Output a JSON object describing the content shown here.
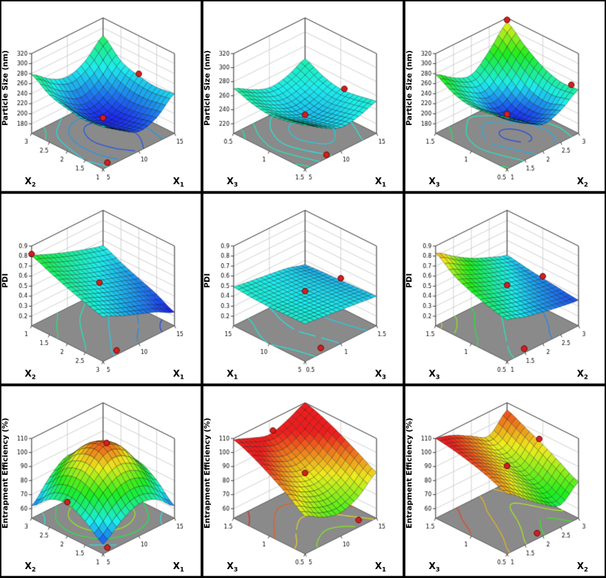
{
  "figure": {
    "layout": "3x3",
    "kind": "response-surface-plots"
  },
  "colors": {
    "floor": "#8a8a8a",
    "panel_bg": "#ffffff",
    "design_point": "#d31f1f",
    "border": "#000000"
  },
  "chart_data": [
    {
      "type": "surface",
      "zlabel": "Particle Size (nm)",
      "z_ticks": [
        180,
        200,
        220,
        240,
        260,
        280,
        300,
        320
      ],
      "left_axis": {
        "label": "X2",
        "label_main": "X",
        "label_sub": "2",
        "ticks": [
          1,
          1.5,
          2,
          2.5,
          3
        ]
      },
      "right_axis": {
        "label": "X1",
        "label_main": "X",
        "label_sub": "1",
        "ticks": [
          5,
          10,
          15
        ]
      },
      "surface": [
        [
          245,
          220,
          200,
          210,
          240
        ],
        [
          240,
          210,
          192,
          202,
          235
        ],
        [
          245,
          208,
          188,
          200,
          240
        ],
        [
          255,
          222,
          202,
          218,
          252
        ],
        [
          278,
          252,
          238,
          252,
          285
        ]
      ],
      "color_domain": [
        175,
        420
      ],
      "contour_levels": [
        200,
        220,
        240,
        260
      ],
      "design_points": [
        {
          "u": 0.5,
          "v": 0.5,
          "on": "surface"
        },
        {
          "u": 1.0,
          "v": 0.5,
          "on": "surface"
        },
        {
          "u": 0.12,
          "v": 0.06,
          "on": "floor"
        }
      ]
    },
    {
      "type": "surface",
      "zlabel": "Particle Size (nm)",
      "z_ticks": [
        220,
        240,
        260,
        280,
        300,
        320
      ],
      "left_axis": {
        "label": "X3",
        "label_main": "X",
        "label_sub": "3",
        "ticks": [
          1.5,
          1,
          0.5
        ]
      },
      "right_axis": {
        "label": "X1",
        "label_main": "X",
        "label_sub": "1",
        "ticks": [
          5,
          10,
          15
        ]
      },
      "surface": [
        [
          268,
          252,
          240,
          243,
          252
        ],
        [
          262,
          246,
          234,
          237,
          247
        ],
        [
          258,
          242,
          230,
          233,
          244
        ],
        [
          262,
          247,
          236,
          240,
          250
        ],
        [
          270,
          256,
          246,
          250,
          262
        ]
      ],
      "color_domain": [
        170,
        430
      ],
      "contour_levels": [
        235,
        245,
        255,
        265
      ],
      "design_points": [
        {
          "u": 0.5,
          "v": 0.5,
          "on": "surface"
        },
        {
          "u": 1.0,
          "v": 0.45,
          "on": "surface"
        },
        {
          "u": 0.35,
          "v": 0.05,
          "on": "floor"
        }
      ]
    },
    {
      "type": "surface",
      "zlabel": "Particle Size (nm)",
      "z_ticks": [
        180,
        200,
        220,
        240,
        260,
        280,
        300,
        320
      ],
      "left_axis": {
        "label": "X3",
        "label_main": "X",
        "label_sub": "3",
        "ticks": [
          0.5,
          1,
          1.5
        ]
      },
      "right_axis": {
        "label": "X2",
        "label_main": "X",
        "label_sub": "2",
        "ticks": [
          1,
          1.5,
          2,
          2.5,
          3
        ]
      },
      "surface": [
        [
          262,
          238,
          214,
          224,
          248
        ],
        [
          254,
          228,
          200,
          210,
          246
        ],
        [
          250,
          220,
          195,
          216,
          258
        ],
        [
          258,
          234,
          216,
          242,
          282
        ],
        [
          278,
          254,
          242,
          272,
          312
        ]
      ],
      "color_domain": [
        185,
        350
      ],
      "contour_levels": [
        200,
        220,
        240,
        260,
        280
      ],
      "design_points": [
        {
          "u": 0.5,
          "v": 0.5,
          "on": "surface"
        },
        {
          "u": 1.0,
          "v": 1.0,
          "on": "surface"
        },
        {
          "u": 1.0,
          "v": 0.1,
          "on": "surface"
        }
      ]
    },
    {
      "type": "surface",
      "zlabel": "PDI",
      "z_ticks": [
        0.2,
        0.3,
        0.4,
        0.5,
        0.6,
        0.7,
        0.8,
        0.9
      ],
      "left_axis": {
        "label": "X2",
        "label_main": "X",
        "label_sub": "2",
        "ticks": [
          3,
          2.5,
          2,
          1.5,
          1
        ]
      },
      "right_axis": {
        "label": "X1",
        "label_main": "X",
        "label_sub": "1",
        "ticks": [
          5,
          10,
          15
        ]
      },
      "surface": [
        [
          0.55,
          0.47,
          0.4,
          0.33,
          0.24
        ],
        [
          0.6,
          0.53,
          0.46,
          0.4,
          0.33
        ],
        [
          0.66,
          0.59,
          0.52,
          0.46,
          0.4
        ],
        [
          0.73,
          0.65,
          0.58,
          0.52,
          0.47
        ],
        [
          0.8,
          0.73,
          0.66,
          0.6,
          0.55
        ]
      ],
      "color_domain": [
        0.2,
        1.4
      ],
      "contour_levels": [
        0.3,
        0.4,
        0.5,
        0.6,
        0.7
      ],
      "design_points": [
        {
          "u": 0.45,
          "v": 0.5,
          "on": "surface"
        },
        {
          "u": 0.0,
          "v": 1.0,
          "on": "surface"
        },
        {
          "u": 0.25,
          "v": 0.06,
          "on": "floor"
        }
      ]
    },
    {
      "type": "surface",
      "zlabel": "PDI",
      "z_ticks": [
        0.2,
        0.3,
        0.4,
        0.5,
        0.6,
        0.7,
        0.8,
        0.9
      ],
      "left_axis": {
        "label": "X1",
        "label_main": "X",
        "label_sub": "1",
        "ticks": [
          5,
          10,
          15
        ]
      },
      "right_axis": {
        "label": "X3",
        "label_main": "X",
        "label_sub": "3",
        "ticks": [
          0.5,
          1,
          1.5
        ]
      },
      "surface": [
        [
          0.48,
          0.46,
          0.44,
          0.42,
          0.4
        ],
        [
          0.475,
          0.455,
          0.435,
          0.415,
          0.39
        ],
        [
          0.47,
          0.45,
          0.43,
          0.41,
          0.38
        ],
        [
          0.475,
          0.455,
          0.432,
          0.408,
          0.372
        ],
        [
          0.49,
          0.465,
          0.44,
          0.412,
          0.36
        ]
      ],
      "color_domain": [
        0.15,
        1.2
      ],
      "contour_levels": [
        0.38,
        0.41,
        0.44,
        0.47
      ],
      "design_points": [
        {
          "u": 0.5,
          "v": 0.5,
          "on": "surface"
        },
        {
          "u": 1.0,
          "v": 0.5,
          "on": "surface"
        },
        {
          "u": 0.3,
          "v": 0.08,
          "on": "floor"
        }
      ]
    },
    {
      "type": "surface",
      "zlabel": "PDI",
      "z_ticks": [
        0.2,
        0.3,
        0.4,
        0.5,
        0.6,
        0.7,
        0.8,
        0.9
      ],
      "left_axis": {
        "label": "X3",
        "label_main": "X",
        "label_sub": "3",
        "ticks": [
          0.5,
          1,
          1.5
        ]
      },
      "right_axis": {
        "label": "X2",
        "label_main": "X",
        "label_sub": "2",
        "ticks": [
          1,
          1.5,
          2,
          2.5,
          3
        ]
      },
      "surface": [
        [
          0.52,
          0.46,
          0.42,
          0.385,
          0.36
        ],
        [
          0.56,
          0.5,
          0.45,
          0.41,
          0.38
        ],
        [
          0.62,
          0.55,
          0.49,
          0.44,
          0.4
        ],
        [
          0.7,
          0.615,
          0.54,
          0.48,
          0.425
        ],
        [
          0.83,
          0.71,
          0.6,
          0.52,
          0.455
        ]
      ],
      "color_domain": [
        0.3,
        0.92
      ],
      "contour_levels": [
        0.4,
        0.5,
        0.6,
        0.7,
        0.8
      ],
      "design_points": [
        {
          "u": 0.5,
          "v": 0.5,
          "on": "surface"
        },
        {
          "u": 1.0,
          "v": 0.5,
          "on": "surface"
        },
        {
          "u": 0.3,
          "v": 0.06,
          "on": "floor"
        }
      ]
    },
    {
      "type": "surface",
      "zlabel": "Entrapment Efficiency (%)",
      "z_ticks": [
        60,
        70,
        80,
        90,
        100,
        110
      ],
      "left_axis": {
        "label": "X2",
        "label_main": "X",
        "label_sub": "2",
        "ticks": [
          1,
          1.5,
          2,
          2.5,
          3
        ]
      },
      "right_axis": {
        "label": "X1",
        "label_main": "X",
        "label_sub": "1",
        "ticks": [
          5,
          10,
          15
        ]
      },
      "surface": [
        [
          60,
          70,
          76,
          73,
          62
        ],
        [
          70,
          84,
          91,
          87,
          74
        ],
        [
          76,
          92,
          104,
          98,
          81
        ],
        [
          73,
          89,
          99,
          94,
          78
        ],
        [
          62,
          76,
          85,
          80,
          66
        ]
      ],
      "color_domain": [
        55,
        108
      ],
      "contour_levels": [
        70,
        80,
        90,
        100
      ],
      "design_points": [
        {
          "u": 0.55,
          "v": 0.5,
          "on": "surface"
        },
        {
          "u": 0.0,
          "v": 0.5,
          "on": "surface"
        },
        {
          "u": 0.12,
          "v": 0.06,
          "on": "floor"
        }
      ]
    },
    {
      "type": "surface",
      "zlabel": "Entrapment Efficiency (%)",
      "z_ticks": [
        60,
        70,
        80,
        90,
        100,
        110
      ],
      "left_axis": {
        "label": "X3",
        "label_main": "X",
        "label_sub": "3",
        "ticks": [
          0.5,
          1,
          1.5
        ]
      },
      "right_axis": {
        "label": "X1",
        "label_main": "X",
        "label_sub": "1",
        "ticks": [
          5,
          10,
          15
        ]
      },
      "surface": [
        [
          80,
          73,
          70,
          75,
          86
        ],
        [
          89,
          81,
          77,
          82,
          93
        ],
        [
          97,
          89,
          84,
          89,
          100
        ],
        [
          104,
          97,
          92,
          97,
          106
        ],
        [
          109,
          104,
          100,
          104,
          110
        ]
      ],
      "color_domain": [
        30,
        100
      ],
      "contour_levels": [
        75,
        85,
        95,
        105
      ],
      "design_points": [
        {
          "u": 0.5,
          "v": 0.5,
          "on": "surface"
        },
        {
          "u": 0.55,
          "v": 1.0,
          "on": "surface"
        },
        {
          "u": 0.85,
          "v": 0.1,
          "on": "floor"
        }
      ]
    },
    {
      "type": "surface",
      "zlabel": "Entrapment Efficiency (%)",
      "z_ticks": [
        60,
        70,
        80,
        90,
        100,
        110
      ],
      "left_axis": {
        "label": "X3",
        "label_main": "X",
        "label_sub": "3",
        "ticks": [
          0.5,
          1,
          1.5
        ]
      },
      "right_axis": {
        "label": "X2",
        "label_main": "X",
        "label_sub": "2",
        "ticks": [
          1,
          1.5,
          2,
          2.5,
          3
        ]
      },
      "surface": [
        [
          96,
          86,
          76,
          69,
          79
        ],
        [
          101,
          93,
          83,
          75,
          86
        ],
        [
          105,
          98,
          89,
          81,
          93
        ],
        [
          108,
          102,
          94,
          87,
          99
        ],
        [
          110,
          106,
          99,
          93,
          105
        ]
      ],
      "color_domain": [
        35,
        108
      ],
      "contour_levels": [
        75,
        85,
        95,
        105
      ],
      "design_points": [
        {
          "u": 0.5,
          "v": 0.5,
          "on": "surface"
        },
        {
          "u": 1.0,
          "v": 0.55,
          "on": "surface"
        },
        {
          "u": 0.5,
          "v": 0.08,
          "on": "floor"
        }
      ]
    }
  ]
}
